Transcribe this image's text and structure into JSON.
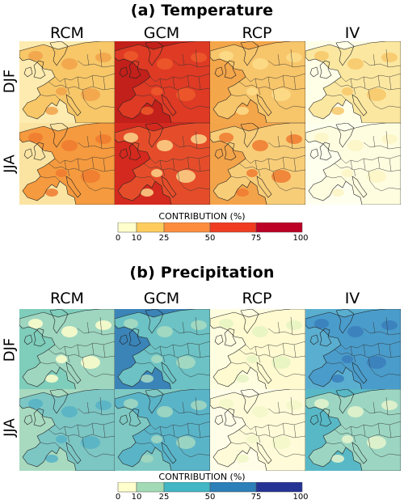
{
  "panels": [
    {
      "title": "(a) Temperature",
      "columns": [
        "RCM",
        "GCM",
        "RCP",
        "IV"
      ],
      "rows": [
        "DJF",
        "JJA"
      ],
      "colorbar": {
        "label": "CONTRIBUTION (%)",
        "ticks": [
          "0",
          "10",
          "25",
          "50",
          "75",
          "100"
        ],
        "colors": [
          "#ffffcc",
          "#fecc5c",
          "#fd8d3c",
          "#f03b20",
          "#bd0026"
        ]
      },
      "maps": [
        {
          "sea": "#fdebb0",
          "land": "#f7c768",
          "spots": "#f2a24a"
        },
        {
          "sea": "#c2201a",
          "land": "#de3a24",
          "spots": "#ee5a2c"
        },
        {
          "sea": "#f4a64a",
          "land": "#f7c56a",
          "spots": "#fddc8a"
        },
        {
          "sea": "#ffffe8",
          "land": "#fbe7a0",
          "spots": "#f7c768"
        },
        {
          "sea": "#fbe4a2",
          "land": "#f59a3e",
          "spots": "#ef7a30"
        },
        {
          "sea": "#d4291e",
          "land": "#e54d2a",
          "spots": "#fcd58a"
        },
        {
          "sea": "#f3a44a",
          "land": "#f8cd78",
          "spots": "#ef7a30"
        },
        {
          "sea": "#ffffee",
          "land": "#fffde0",
          "spots": "#fdf4c4"
        }
      ]
    },
    {
      "title": "(b) Precipitation",
      "columns": [
        "RCM",
        "GCM",
        "RCP",
        "IV"
      ],
      "rows": [
        "DJF",
        "JJA"
      ],
      "colorbar": {
        "label": "CONTRIBUTION (%)",
        "ticks": [
          "0",
          "10",
          "25",
          "50",
          "75",
          "100"
        ],
        "colors": [
          "#ffffcc",
          "#a1dab4",
          "#41b6c4",
          "#2c7fb8",
          "#253494"
        ]
      },
      "maps": [
        {
          "sea": "#7fcdbb",
          "land": "#9ed6c0",
          "spots": "#ffffcc"
        },
        {
          "sea": "#3a84b8",
          "land": "#6cc2c4",
          "spots": "#a9dcc2"
        },
        {
          "sea": "#fffde0",
          "land": "#fffad0",
          "spots": "#e6f3c2"
        },
        {
          "sea": "#5aaed0",
          "land": "#4a9ccb",
          "spots": "#3a7fbc"
        },
        {
          "sea": "#a8dac0",
          "land": "#7cc6c4",
          "spots": "#56b2c6"
        },
        {
          "sea": "#7ec9c3",
          "land": "#5ab4c8",
          "spots": "#a4d8c0"
        },
        {
          "sea": "#fffde8",
          "land": "#fffbd8",
          "spots": "#f2f7c8"
        },
        {
          "sea": "#58b8c6",
          "land": "#9cd6c2",
          "spots": "#e6f5cc"
        }
      ]
    }
  ]
}
